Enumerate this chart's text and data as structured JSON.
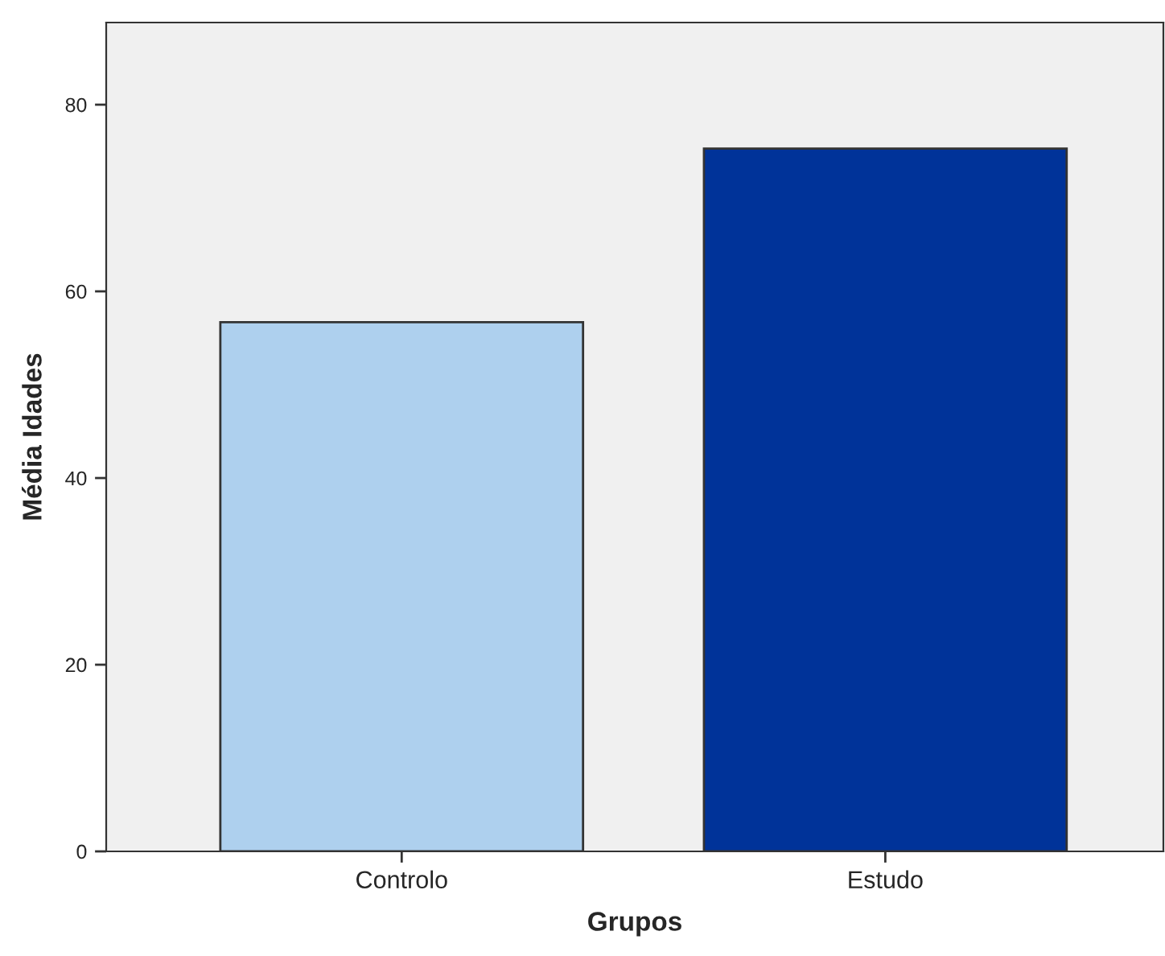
{
  "chart_data": {
    "type": "bar",
    "xlabel": "Grupos",
    "ylabel": "Média Idades",
    "categories": [
      "Controlo",
      "Estudo"
    ],
    "values": [
      56.7,
      75.3
    ],
    "colors": [
      "#aed0ee",
      "#003399"
    ],
    "ylim": [
      0,
      88.8
    ],
    "yticks": [
      0,
      20,
      40,
      60,
      80
    ],
    "grid": false,
    "legend": false
  }
}
